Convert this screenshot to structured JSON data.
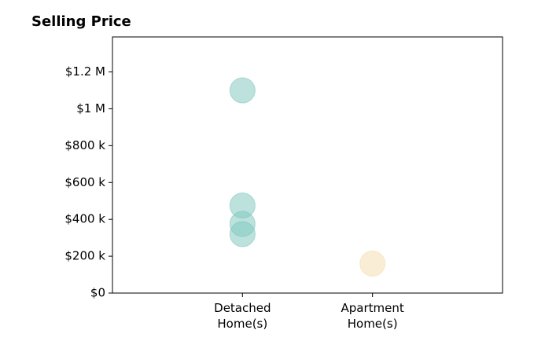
{
  "chart_data": {
    "type": "scatter",
    "title": "Selling Price",
    "categories": [
      "Detached\nHome(s)",
      "Apartment\nHome(s)"
    ],
    "series": [
      {
        "color": "#7cc6bd",
        "values": [
          1100000,
          475000,
          375000,
          320000
        ]
      },
      {
        "color": "#f3dcae",
        "values": [
          160000
        ]
      }
    ],
    "ylim": [
      0,
      1390000
    ],
    "yticks": [
      {
        "value": 0,
        "label": "$0"
      },
      {
        "value": 200000,
        "label": "$200 k"
      },
      {
        "value": 400000,
        "label": "$400 k"
      },
      {
        "value": 600000,
        "label": "$600 k"
      },
      {
        "value": 800000,
        "label": "$800 k"
      },
      {
        "value": 1000000,
        "label": "$1 M"
      },
      {
        "value": 1200000,
        "label": "$1.2 M"
      }
    ]
  }
}
